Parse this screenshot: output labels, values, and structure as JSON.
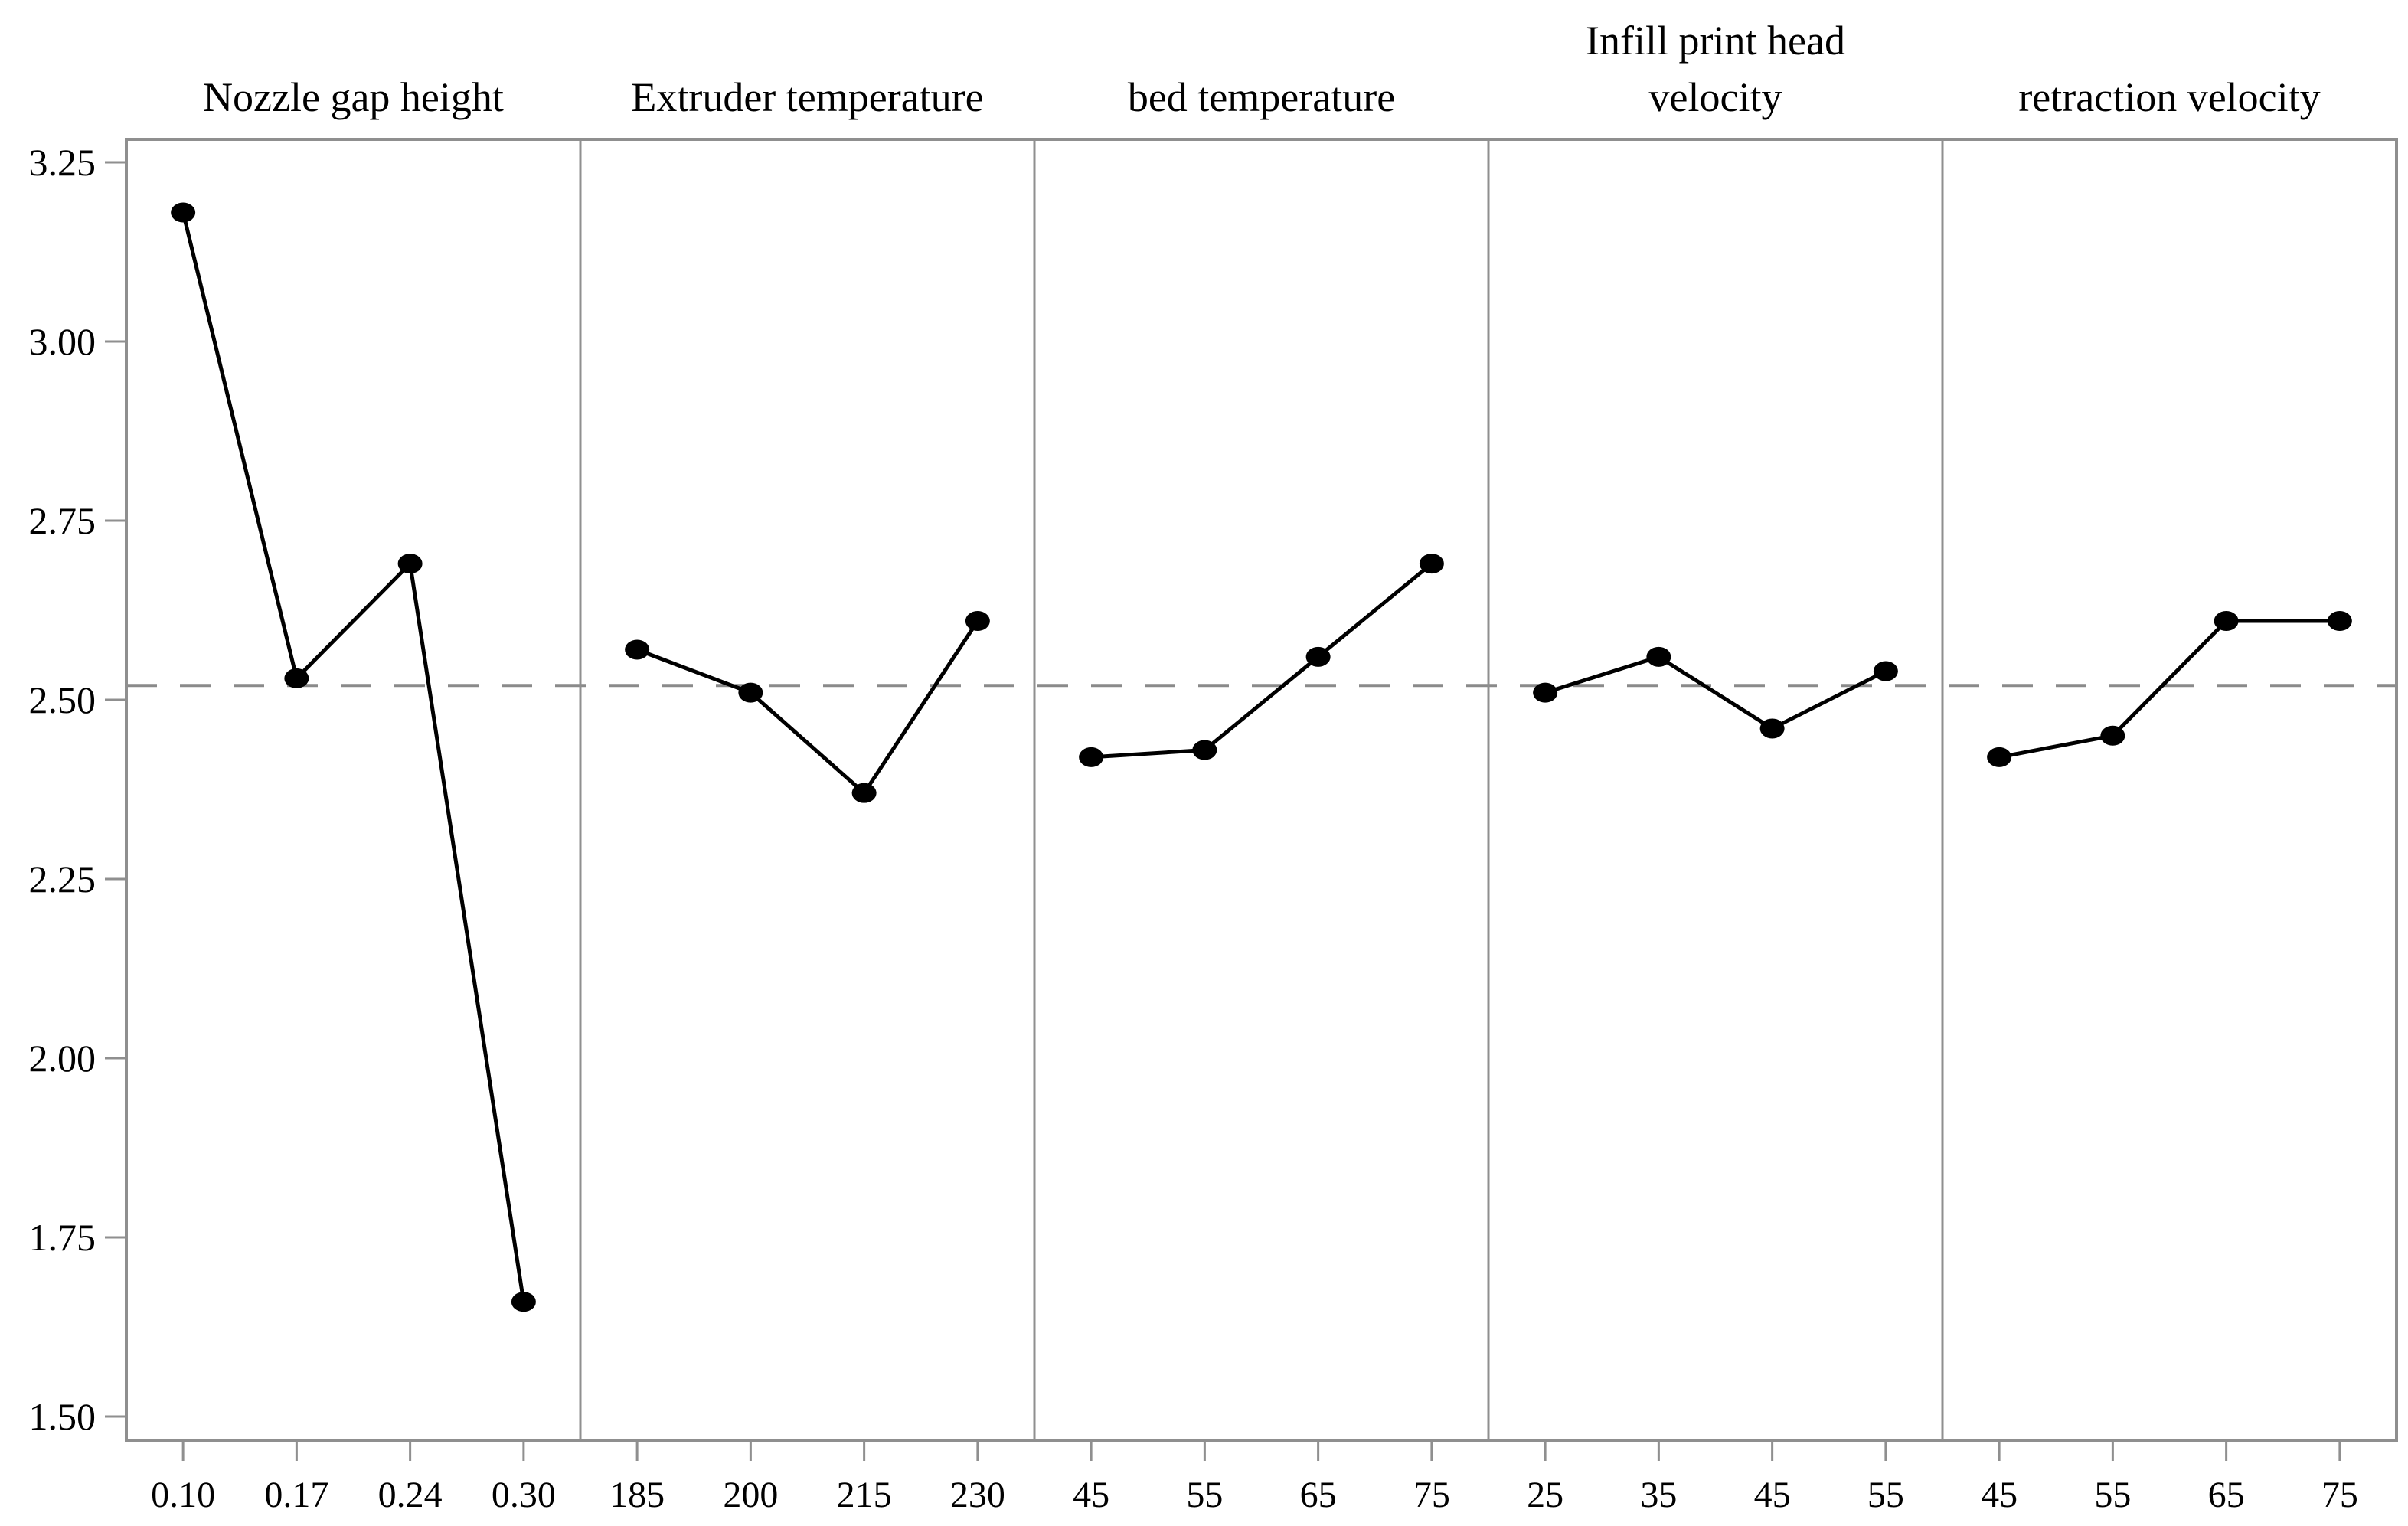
{
  "chart_data": {
    "type": "line",
    "title": "",
    "xlabel": "",
    "ylabel": "",
    "grid": false,
    "legend": false,
    "ylim": [
      1.467,
      3.282
    ],
    "y_axis": {
      "tick_labels": [
        "3.25",
        "3.00",
        "2.75",
        "2.50",
        "2.25",
        "2.00",
        "1.75",
        "1.50"
      ],
      "tick_values": [
        3.25,
        3.0,
        2.75,
        2.5,
        2.25,
        2.0,
        1.75,
        1.5
      ]
    },
    "reference_line": {
      "value": 2.52,
      "style": "dashed"
    },
    "panels": [
      {
        "title_lines": [
          "Nozzle gap height"
        ],
        "categories": [
          "0.10",
          "0.17",
          "0.24",
          "0.30"
        ],
        "values": [
          3.18,
          2.53,
          2.69,
          1.66
        ]
      },
      {
        "title_lines": [
          "Extruder temperature"
        ],
        "categories": [
          "185",
          "200",
          "215",
          "230"
        ],
        "values": [
          2.57,
          2.51,
          2.37,
          2.61
        ]
      },
      {
        "title_lines": [
          "bed temperature"
        ],
        "categories": [
          "45",
          "55",
          "65",
          "75"
        ],
        "values": [
          2.42,
          2.43,
          2.56,
          2.69
        ]
      },
      {
        "title_lines": [
          "Infill print head",
          "velocity"
        ],
        "categories": [
          "25",
          "35",
          "45",
          "55"
        ],
        "values": [
          2.51,
          2.56,
          2.46,
          2.54
        ]
      },
      {
        "title_lines": [
          "retraction velocity"
        ],
        "categories": [
          "45",
          "55",
          "65",
          "75"
        ],
        "values": [
          2.42,
          2.45,
          2.61,
          2.61
        ]
      }
    ],
    "colors": {
      "series_line": "#000000",
      "marker": "#000000",
      "frame": "#8f8f8f",
      "tick": "#8f8f8f",
      "reference_line": "#8a8a8a",
      "text": "#000000",
      "background": "#ffffff"
    }
  }
}
